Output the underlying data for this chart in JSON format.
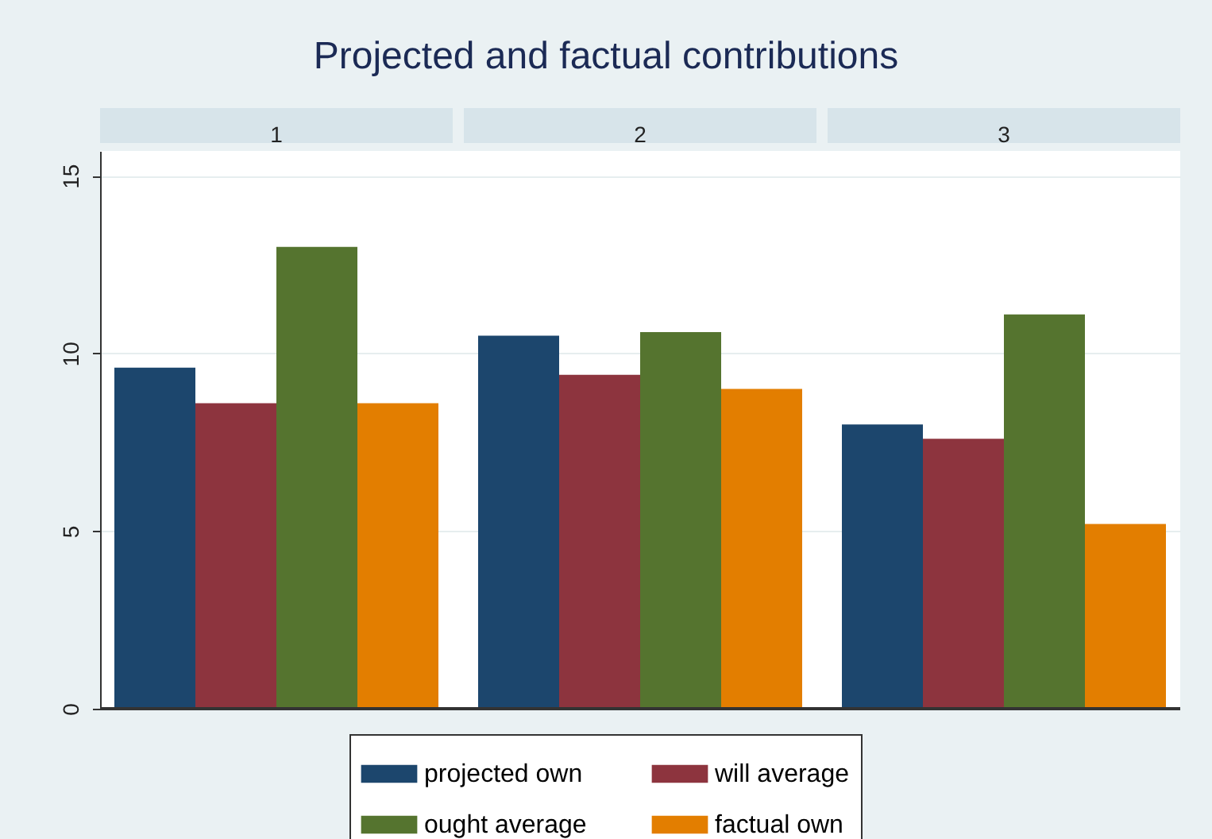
{
  "chart_data": {
    "type": "bar",
    "title": "Projected and factual contributions",
    "categories": [
      "1",
      "2",
      "3"
    ],
    "ylim": [
      0,
      15.7
    ],
    "yticks": [
      0,
      5,
      10,
      15
    ],
    "grid": "y",
    "legend": "bottom",
    "series": [
      {
        "name": "projected own",
        "color": "#1c466d",
        "values": [
          9.6,
          10.5,
          8.0
        ]
      },
      {
        "name": "will average",
        "color": "#8d343e",
        "values": [
          8.6,
          9.4,
          7.6
        ]
      },
      {
        "name": "ought average",
        "color": "#55742f",
        "values": [
          13.0,
          10.6,
          11.1
        ]
      },
      {
        "name": "factual own",
        "color": "#e37e00",
        "values": [
          8.6,
          9.0,
          5.2
        ]
      }
    ]
  }
}
